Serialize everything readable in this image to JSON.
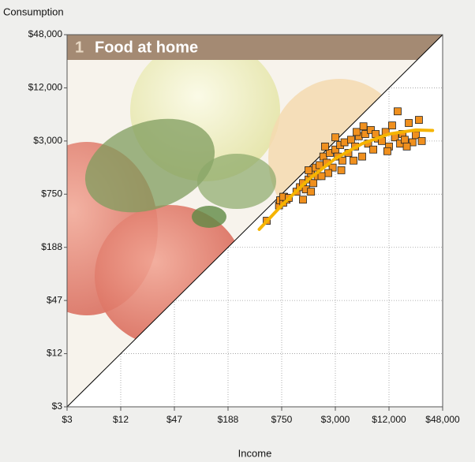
{
  "chart_data": {
    "type": "scatter",
    "panel_number": "1",
    "title": "Food at home",
    "x_label": "Income",
    "y_label": "Consumption",
    "x_log": true,
    "y_log": true,
    "grid": true,
    "xlim": [
      2.9296875,
      48000
    ],
    "ylim": [
      2.9296875,
      48000
    ],
    "xticks": [
      {
        "value": 2.9296875,
        "label": "$3"
      },
      {
        "value": 11.71875,
        "label": "$12"
      },
      {
        "value": 46.875,
        "label": "$47"
      },
      {
        "value": 187.5,
        "label": "$188"
      },
      {
        "value": 750,
        "label": "$750"
      },
      {
        "value": 3000,
        "label": "$3,000"
      },
      {
        "value": 12000,
        "label": "$12,000"
      },
      {
        "value": 48000,
        "label": "$48,000"
      }
    ],
    "yticks": [
      {
        "value": 2.9296875,
        "label": "$3"
      },
      {
        "value": 11.71875,
        "label": "$12"
      },
      {
        "value": 46.875,
        "label": "$47"
      },
      {
        "value": 187.5,
        "label": "$188"
      },
      {
        "value": 750,
        "label": "$750"
      },
      {
        "value": 3000,
        "label": "$3,000"
      },
      {
        "value": 12000,
        "label": "$12,000"
      },
      {
        "value": 48000,
        "label": "$48,000"
      }
    ],
    "series": [
      {
        "type": "scatter",
        "color": "#f0901e",
        "x": [
          510,
          700,
          720,
          780,
          800,
          850,
          780,
          900,
          1100,
          1200,
          1300,
          1400,
          1500,
          1600,
          1700,
          1800,
          1900,
          1300,
          1600,
          2000,
          1500,
          2200,
          2400,
          2600,
          2800,
          3000,
          3200,
          3400,
          3600,
          3800,
          2500,
          2300,
          3000,
          3500,
          2100,
          4200,
          4500,
          5000,
          5500,
          6000,
          6500,
          7000,
          7500,
          8000,
          9000,
          4800,
          5200,
          6200,
          8500,
          10000,
          11000,
          12000,
          13000,
          14000,
          15000,
          16000,
          17000,
          18000,
          20000,
          22000,
          24000,
          26000,
          28000,
          11500,
          19000
        ],
        "values": [
          375,
          560,
          640,
          600,
          700,
          650,
          700,
          680,
          800,
          900,
          1000,
          850,
          1100,
          1300,
          1000,
          1500,
          1200,
          650,
          800,
          1600,
          1400,
          2000,
          1700,
          2200,
          1500,
          2400,
          2000,
          2700,
          1800,
          2900,
          1300,
          2600,
          3300,
          1400,
          1200,
          2200,
          3100,
          2600,
          3400,
          2000,
          3600,
          2800,
          4000,
          2400,
          3200,
          1800,
          3800,
          4400,
          3600,
          3000,
          3800,
          2600,
          4500,
          3300,
          6500,
          2800,
          3600,
          3100,
          4800,
          2900,
          3500,
          5200,
          3000,
          2300,
          2600
        ]
      },
      {
        "type": "line",
        "color": "#f5b400",
        "x": [
          420,
          750,
          1500,
          3000,
          6000,
          12000,
          24000,
          37000
        ],
        "values": [
          300,
          560,
          1100,
          1900,
          2800,
          3600,
          4000,
          3950
        ]
      }
    ]
  }
}
